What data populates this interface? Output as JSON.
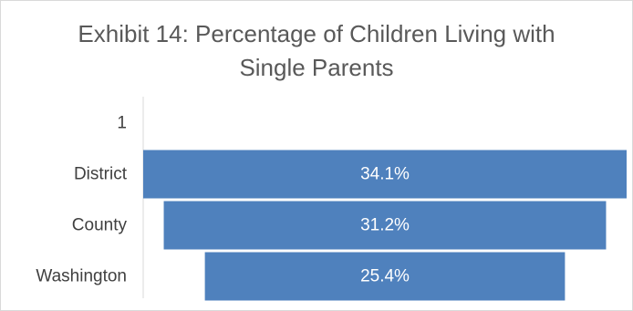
{
  "chart_data": {
    "type": "bar",
    "orientation": "horizontal",
    "style": "funnel",
    "title_lines": [
      "Exhibit 14: Percentage of Children Living with",
      "Single Parents"
    ],
    "categories": [
      "1",
      "District",
      "County",
      "Washington"
    ],
    "values": [
      null,
      34.1,
      31.2,
      25.4
    ],
    "data_labels": [
      "",
      "34.1%",
      "31.2%",
      "25.4%"
    ],
    "xlim": [
      0,
      34.1
    ],
    "grid": false,
    "legend": "none",
    "bar_color": "#4F81BD",
    "axis_color": "#d9d9d9"
  }
}
